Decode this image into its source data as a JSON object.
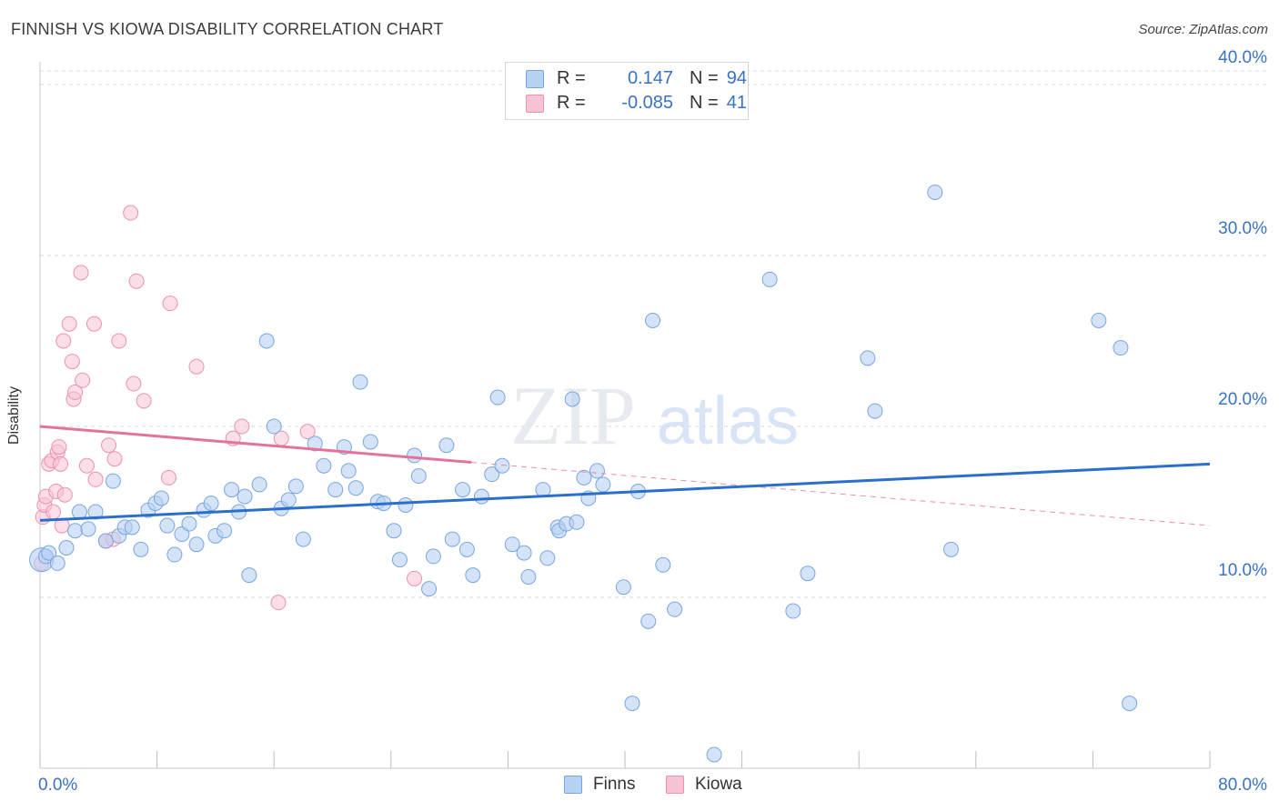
{
  "title": "FINNISH VS KIOWA DISABILITY CORRELATION CHART",
  "source": "Source: ZipAtlas.com",
  "watermark": {
    "zip": "ZIP",
    "atlas": "atlas"
  },
  "legend": {
    "rows": [
      {
        "r_label": "R =",
        "r_value": "0.147",
        "n_label": "N =",
        "n_value": "94"
      },
      {
        "r_label": "R =",
        "r_value": "-0.085",
        "n_label": "N =",
        "n_value": "41"
      }
    ]
  },
  "bottom_legend": {
    "finns": "Finns",
    "kiowa": "Kiowa"
  },
  "colors": {
    "finns_fill": "#b7d1f2",
    "finns_stroke": "#7aa6dd",
    "finns_line": "#2a6fcb",
    "kiowa_fill": "#f7c2d3",
    "kiowa_stroke": "#eb92b0",
    "kiowa_line": "#e4739a",
    "tick_text": "#3a72c4",
    "grid": "#d9d9d9"
  },
  "chart_data": {
    "type": "scatter",
    "title": "FINNISH VS KIOWA DISABILITY CORRELATION CHART",
    "xlabel": "",
    "ylabel": "Disability",
    "xlim": [
      0,
      80
    ],
    "ylim": [
      0,
      40.8
    ],
    "x_ticks": [
      0,
      8,
      16,
      24,
      32,
      40,
      48,
      56,
      64,
      72,
      80
    ],
    "x_tick_labels": {
      "0": "0.0%",
      "80": "80.0%"
    },
    "y_ticks": [
      10,
      20,
      30,
      40
    ],
    "y_tick_labels": [
      "10.0%",
      "20.0%",
      "30.0%",
      "40.0%"
    ],
    "grid": "horizontal dashed",
    "series": [
      {
        "name": "Finns",
        "R": 0.147,
        "N": 94,
        "trend": {
          "x": [
            0,
            80
          ],
          "y": [
            14.5,
            17.8
          ],
          "style": "solid"
        },
        "points": [
          [
            0.1,
            12.2
          ],
          [
            0.4,
            12.4
          ],
          [
            0.6,
            12.6
          ],
          [
            1.2,
            12.0
          ],
          [
            1.8,
            12.9
          ],
          [
            2.4,
            13.9
          ],
          [
            2.7,
            15.0
          ],
          [
            3.3,
            14.0
          ],
          [
            3.8,
            15.0
          ],
          [
            4.5,
            13.3
          ],
          [
            5.0,
            16.8
          ],
          [
            5.4,
            13.6
          ],
          [
            5.8,
            14.1
          ],
          [
            6.3,
            14.1
          ],
          [
            6.9,
            12.8
          ],
          [
            7.4,
            15.1
          ],
          [
            7.9,
            15.5
          ],
          [
            8.3,
            15.8
          ],
          [
            8.7,
            14.2
          ],
          [
            9.2,
            12.5
          ],
          [
            9.7,
            13.7
          ],
          [
            10.2,
            14.3
          ],
          [
            10.7,
            13.1
          ],
          [
            11.2,
            15.1
          ],
          [
            11.7,
            15.5
          ],
          [
            12.0,
            13.6
          ],
          [
            12.6,
            13.9
          ],
          [
            13.1,
            16.3
          ],
          [
            13.6,
            15.0
          ],
          [
            14.0,
            15.9
          ],
          [
            14.3,
            11.3
          ],
          [
            15.0,
            16.6
          ],
          [
            15.5,
            25.0
          ],
          [
            16.0,
            20.0
          ],
          [
            16.5,
            15.2
          ],
          [
            17.0,
            15.7
          ],
          [
            17.5,
            16.5
          ],
          [
            18.0,
            13.4
          ],
          [
            18.8,
            19.0
          ],
          [
            19.4,
            17.7
          ],
          [
            20.2,
            16.3
          ],
          [
            20.8,
            18.8
          ],
          [
            21.1,
            17.4
          ],
          [
            21.6,
            16.4
          ],
          [
            21.9,
            22.6
          ],
          [
            22.6,
            19.1
          ],
          [
            23.1,
            15.6
          ],
          [
            23.5,
            15.5
          ],
          [
            24.2,
            13.9
          ],
          [
            24.6,
            12.2
          ],
          [
            25.0,
            15.4
          ],
          [
            25.6,
            18.3
          ],
          [
            25.9,
            17.1
          ],
          [
            26.6,
            10.5
          ],
          [
            26.9,
            12.4
          ],
          [
            27.8,
            18.9
          ],
          [
            28.2,
            13.4
          ],
          [
            28.9,
            16.3
          ],
          [
            29.2,
            12.8
          ],
          [
            29.6,
            11.3
          ],
          [
            30.2,
            15.9
          ],
          [
            30.9,
            17.2
          ],
          [
            31.3,
            21.7
          ],
          [
            31.6,
            17.7
          ],
          [
            32.3,
            13.1
          ],
          [
            33.1,
            12.6
          ],
          [
            33.4,
            11.2
          ],
          [
            34.4,
            16.3
          ],
          [
            34.7,
            12.3
          ],
          [
            35.4,
            14.1
          ],
          [
            35.5,
            13.9
          ],
          [
            36.0,
            14.3
          ],
          [
            36.4,
            21.6
          ],
          [
            36.7,
            14.4
          ],
          [
            37.2,
            17.0
          ],
          [
            37.5,
            15.8
          ],
          [
            38.1,
            17.4
          ],
          [
            38.5,
            16.6
          ],
          [
            39.9,
            10.6
          ],
          [
            40.5,
            3.8
          ],
          [
            40.9,
            16.2
          ],
          [
            41.6,
            8.6
          ],
          [
            41.9,
            26.2
          ],
          [
            42.6,
            11.9
          ],
          [
            43.4,
            9.3
          ],
          [
            46.1,
            0.8
          ],
          [
            49.9,
            28.6
          ],
          [
            51.5,
            9.2
          ],
          [
            52.5,
            11.4
          ],
          [
            56.6,
            24.0
          ],
          [
            57.1,
            20.9
          ],
          [
            61.2,
            33.7
          ],
          [
            62.3,
            12.8
          ],
          [
            72.4,
            26.2
          ],
          [
            73.9,
            24.6
          ],
          [
            74.5,
            3.8
          ]
        ]
      },
      {
        "name": "Kiowa",
        "R": -0.085,
        "N": 41,
        "trend": {
          "x": [
            0,
            29.5
          ],
          "y": [
            20.0,
            17.9
          ],
          "style": "solid",
          "extended": {
            "x": [
              29.5,
              80
            ],
            "y": [
              17.9,
              14.2
            ],
            "style": "dashed"
          }
        },
        "points": [
          [
            0.1,
            12.0
          ],
          [
            0.2,
            14.7
          ],
          [
            0.3,
            15.4
          ],
          [
            0.4,
            15.9
          ],
          [
            0.6,
            17.8
          ],
          [
            0.8,
            18.0
          ],
          [
            0.9,
            15.0
          ],
          [
            1.1,
            16.2
          ],
          [
            1.2,
            18.5
          ],
          [
            1.3,
            18.8
          ],
          [
            1.4,
            17.8
          ],
          [
            1.5,
            14.2
          ],
          [
            1.6,
            25.0
          ],
          [
            1.7,
            16.0
          ],
          [
            2.0,
            26.0
          ],
          [
            2.2,
            23.8
          ],
          [
            2.3,
            21.6
          ],
          [
            2.4,
            22.0
          ],
          [
            2.8,
            29.0
          ],
          [
            2.9,
            22.7
          ],
          [
            3.2,
            17.7
          ],
          [
            3.7,
            26.0
          ],
          [
            3.8,
            16.9
          ],
          [
            4.5,
            13.3
          ],
          [
            4.7,
            18.9
          ],
          [
            5.1,
            18.1
          ],
          [
            5.0,
            13.4
          ],
          [
            5.4,
            25.0
          ],
          [
            6.2,
            32.5
          ],
          [
            6.4,
            22.5
          ],
          [
            6.6,
            28.5
          ],
          [
            7.1,
            21.5
          ],
          [
            8.9,
            27.2
          ],
          [
            8.8,
            17.0
          ],
          [
            10.7,
            23.5
          ],
          [
            13.2,
            19.3
          ],
          [
            13.8,
            20.0
          ],
          [
            16.3,
            9.7
          ],
          [
            16.5,
            19.3
          ],
          [
            18.3,
            19.7
          ],
          [
            25.6,
            11.1
          ]
        ]
      }
    ]
  }
}
